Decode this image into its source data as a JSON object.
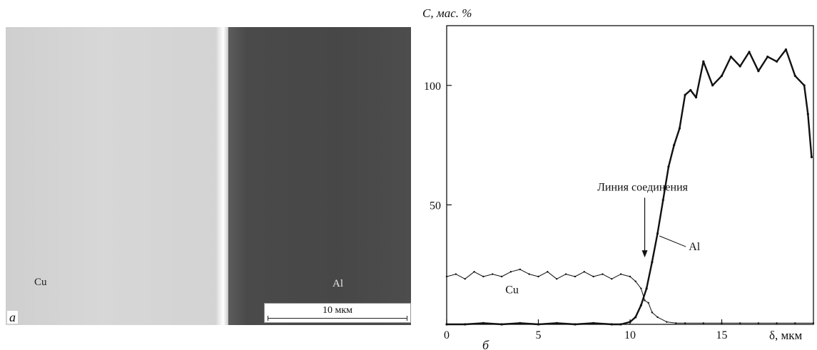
{
  "micrograph": {
    "cu_label": "Cu",
    "al_label": "Al",
    "scale_bar_label": "10 мкм",
    "panel_letter": "a"
  },
  "chart_data": {
    "type": "line",
    "panel_letter": "б",
    "ylabel": "C, мас. %",
    "xlabel": "δ, мкм",
    "xlim": [
      0,
      20
    ],
    "ylim": [
      0,
      125
    ],
    "xticks": [
      0,
      5,
      10,
      15
    ],
    "yticks": [
      50,
      100
    ],
    "annotations": [
      {
        "text": "Линия соединения",
        "x": 10.8,
        "y": 56
      },
      {
        "text": "Al",
        "x": 13.2,
        "y": 31
      }
    ],
    "series": [
      {
        "name": "Cu",
        "x": [
          0,
          0.5,
          1,
          1.5,
          2,
          2.5,
          3,
          3.5,
          4,
          4.5,
          5,
          5.5,
          6,
          6.5,
          7,
          7.5,
          8,
          8.5,
          9,
          9.5,
          10,
          10.3,
          10.6,
          10.8,
          11,
          11.2,
          11.5,
          12,
          12.5,
          13,
          14,
          15,
          16,
          17,
          18,
          19,
          20
        ],
        "y": [
          20,
          21,
          19,
          22,
          20,
          21,
          20,
          22,
          23,
          21,
          20,
          22,
          19,
          21,
          20,
          22,
          20,
          21,
          19,
          21,
          20,
          18,
          15,
          10,
          9,
          5,
          3,
          1,
          0.5,
          0.5,
          0.5,
          0.5,
          0.5,
          0.5,
          0.5,
          0.5,
          0.5
        ]
      },
      {
        "name": "Al",
        "x": [
          0,
          1,
          2,
          3,
          4,
          5,
          6,
          7,
          8,
          9,
          9.5,
          10,
          10.3,
          10.6,
          10.9,
          11.2,
          11.5,
          11.8,
          12.1,
          12.4,
          12.7,
          13,
          13.3,
          13.6,
          14,
          14.5,
          15,
          15.5,
          16,
          16.5,
          17,
          17.5,
          18,
          18.5,
          19,
          19.5,
          19.7,
          19.9
        ],
        "y": [
          0,
          0,
          0.5,
          0,
          0.5,
          0,
          0.5,
          0,
          0.5,
          0,
          0,
          1,
          3,
          8,
          15,
          26,
          38,
          52,
          66,
          75,
          82,
          96,
          98,
          95,
          110,
          100,
          104,
          112,
          108,
          114,
          106,
          112,
          110,
          115,
          104,
          100,
          88,
          70
        ]
      }
    ]
  }
}
